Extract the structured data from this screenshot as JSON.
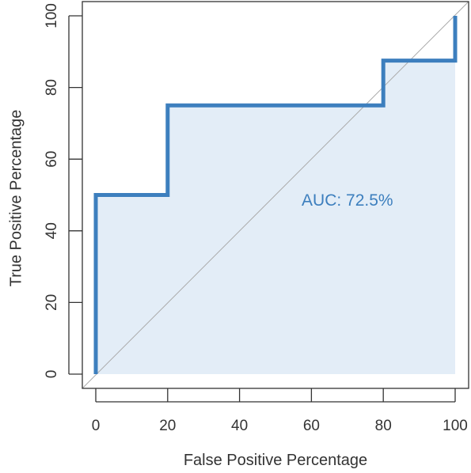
{
  "chart_data": {
    "type": "line",
    "title": "",
    "xlabel": "False Positive Percentage",
    "ylabel": "True Positive Percentage",
    "xlim": [
      0,
      100
    ],
    "ylim": [
      0,
      100
    ],
    "xticks": [
      0,
      20,
      40,
      60,
      80,
      100
    ],
    "yticks": [
      0,
      20,
      40,
      60,
      80,
      100
    ],
    "grid": false,
    "series": [
      {
        "x": [
          0,
          0,
          20,
          20,
          80,
          80,
          100,
          100
        ],
        "y": [
          0,
          50,
          50,
          75,
          75,
          87.5,
          87.5,
          100
        ],
        "area_fill": true
      }
    ],
    "reference_line": {
      "x": [
        0,
        100
      ],
      "y": [
        0,
        100
      ]
    },
    "annotation": {
      "text": "AUC: 72.5%",
      "x": 70,
      "y": 47
    },
    "colors": {
      "line": "#3d7fbe",
      "fill": "#e3edf7",
      "reference": "#aaaaaa",
      "annotation": "#3d7fbe",
      "axis": "#333333"
    }
  }
}
